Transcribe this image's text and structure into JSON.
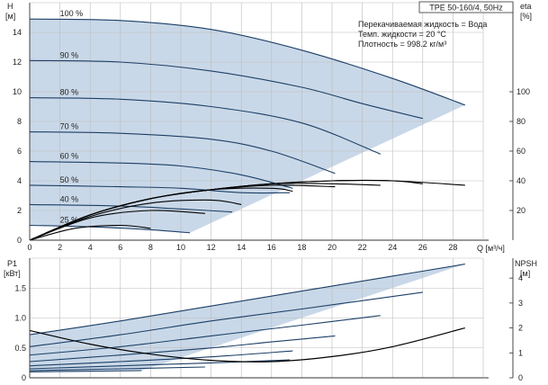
{
  "chart_data": {
    "type": "line",
    "title": "TPE 50-160/4, 50Hz",
    "info_lines": [
      "Перекачиваемая жидкость = Вода",
      "Темп. жидкости = 20 °C",
      "Плотность = 998.2 кг/м³"
    ],
    "x": {
      "label": "Q [м³/ч]",
      "ticks": [
        "0",
        "2",
        "4",
        "6",
        "8",
        "10",
        "12",
        "14",
        "16",
        "18",
        "20",
        "22",
        "24",
        "26",
        "28"
      ],
      "range": [
        0,
        30
      ]
    },
    "top": {
      "y_left_label": [
        "H",
        "[м]"
      ],
      "y_left_ticks": [
        "0",
        "2",
        "4",
        "6",
        "8",
        "10",
        "12",
        "14"
      ],
      "y_left_range": [
        0,
        16
      ],
      "y_right_label": [
        "eta",
        "[%]"
      ],
      "y_right_ticks": [
        "20",
        "40",
        "60",
        "80",
        "100"
      ],
      "y_right_range": [
        0,
        160
      ],
      "grid": true
    },
    "bottom": {
      "y_left_label": [
        "P1",
        "[кВт]"
      ],
      "y_left_ticks": [
        "0",
        "0.5",
        "1.0",
        "1.5"
      ],
      "y_left_range": [
        0,
        2.0
      ],
      "y_right_label": [
        "NPSH",
        "[м]"
      ],
      "y_right_ticks": [
        "0",
        "1",
        "2",
        "3",
        "4"
      ],
      "y_right_range": [
        0,
        4.8
      ],
      "grid": true
    },
    "head_curves": [
      {
        "label": "100 %",
        "x": [
          0,
          6,
          12,
          18,
          24,
          28.8
        ],
        "y": [
          14.9,
          14.8,
          14.2,
          12.8,
          10.9,
          9.1
        ]
      },
      {
        "label": "90 %",
        "x": [
          0,
          6,
          12,
          18,
          22,
          26
        ],
        "y": [
          12.1,
          12.0,
          11.4,
          10.3,
          9.2,
          8.2
        ]
      },
      {
        "label": "80 %",
        "x": [
          0,
          6,
          12,
          18,
          23.2
        ],
        "y": [
          9.6,
          9.5,
          9.0,
          7.9,
          5.8
        ]
      },
      {
        "label": "70 %",
        "x": [
          0,
          6,
          12,
          16,
          20.2
        ],
        "y": [
          7.3,
          7.2,
          6.8,
          6.0,
          4.5
        ]
      },
      {
        "label": "60 %",
        "x": [
          0,
          6,
          10,
          14,
          17.4
        ],
        "y": [
          5.3,
          5.2,
          5.0,
          4.4,
          3.5
        ]
      },
      {
        "label": "50 %",
        "x": [
          0,
          6,
          10,
          14,
          17.2
        ],
        "y": [
          3.7,
          3.6,
          3.5,
          3.2,
          3.2
        ]
      },
      {
        "label": "40 %",
        "x": [
          0,
          6,
          10,
          13.4
        ],
        "y": [
          2.4,
          2.3,
          2.1,
          1.9
        ]
      },
      {
        "label": "25 %",
        "x": [
          0,
          4,
          8,
          10.6
        ],
        "y": [
          1.0,
          0.9,
          0.7,
          0.5
        ]
      }
    ],
    "efficiency_curves": [
      {
        "x": [
          0,
          4,
          8,
          12,
          16,
          20,
          24,
          28.8
        ],
        "eta": [
          0,
          17,
          28,
          34,
          38,
          40,
          40,
          37
        ]
      },
      {
        "x": [
          0,
          4,
          8,
          12,
          16,
          20,
          24,
          26
        ],
        "eta": [
          0,
          17,
          28,
          34,
          38,
          40,
          40,
          38
        ]
      },
      {
        "x": [
          0,
          4,
          8,
          12,
          16,
          20,
          23.2
        ],
        "eta": [
          0,
          17,
          28,
          34,
          38,
          38,
          37
        ]
      },
      {
        "x": [
          0,
          4,
          8,
          12,
          16,
          20.2
        ],
        "eta": [
          0,
          17,
          28,
          34,
          37,
          36
        ]
      },
      {
        "x": [
          0,
          4,
          8,
          12,
          16,
          17.4
        ],
        "eta": [
          0,
          17,
          28,
          34,
          35,
          33
        ]
      },
      {
        "x": [
          0,
          4,
          8,
          12,
          14
        ],
        "eta": [
          0,
          16,
          25,
          27,
          24
        ]
      },
      {
        "x": [
          0,
          4,
          8,
          11.6
        ],
        "eta": [
          0,
          15,
          20,
          18
        ]
      },
      {
        "x": [
          0,
          3,
          6,
          8
        ],
        "eta": [
          0,
          8,
          10,
          8
        ]
      }
    ],
    "power_curves": [
      {
        "label": "100 %",
        "x": [
          0,
          6,
          12,
          18,
          24,
          28.8
        ],
        "p": [
          0.72,
          0.95,
          1.2,
          1.45,
          1.7,
          1.9
        ]
      },
      {
        "label": "90 %",
        "x": [
          0,
          6,
          12,
          18,
          26
        ],
        "p": [
          0.52,
          0.72,
          0.95,
          1.15,
          1.43
        ]
      },
      {
        "label": "80 %",
        "x": [
          0,
          6,
          12,
          18,
          23.2
        ],
        "p": [
          0.38,
          0.52,
          0.7,
          0.88,
          1.04
        ]
      },
      {
        "label": "70 %",
        "x": [
          0,
          6,
          12,
          16,
          20.2
        ],
        "p": [
          0.27,
          0.38,
          0.5,
          0.6,
          0.7
        ]
      },
      {
        "label": "60 %",
        "x": [
          0,
          6,
          12,
          17.4
        ],
        "p": [
          0.2,
          0.27,
          0.35,
          0.45
        ]
      },
      {
        "label": "50 %",
        "x": [
          0,
          6,
          12,
          17.2
        ],
        "p": [
          0.15,
          0.2,
          0.25,
          0.3
        ]
      },
      {
        "label": "40 %",
        "x": [
          0,
          6,
          11.6
        ],
        "p": [
          0.12,
          0.15,
          0.18
        ]
      },
      {
        "label": "25 %",
        "x": [
          0,
          4,
          7.4
        ],
        "p": [
          0.1,
          0.11,
          0.12
        ]
      }
    ],
    "npsh_curve": {
      "x": [
        0,
        4,
        8,
        12,
        16,
        20,
        24,
        28.8
      ],
      "npsh": [
        1.9,
        1.35,
        0.95,
        0.7,
        0.65,
        0.85,
        1.25,
        2.0
      ]
    },
    "colors": {
      "curve": "#1c3f66",
      "fill": "#c9d8e8",
      "grid": "#bbbbbb",
      "axis": "#333333",
      "eta": "#000000"
    }
  }
}
